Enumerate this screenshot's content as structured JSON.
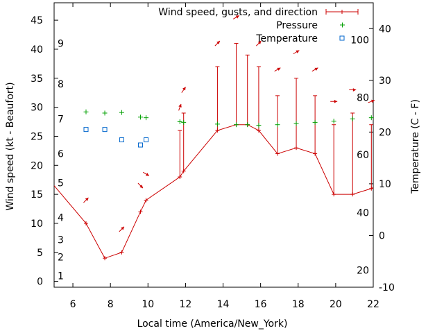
{
  "chart_data": {
    "type": "line",
    "xlabel": "Local time (America/New_York)",
    "ylabel_left": "Wind speed (kt - Beaufort)",
    "ylabel_right": "Temperature (C - F)",
    "xlim": [
      5,
      22
    ],
    "ylim_left": [
      -1,
      48
    ],
    "ylim_right": [
      -10,
      45
    ],
    "x_ticks": [
      6,
      8,
      10,
      12,
      14,
      16,
      18,
      20,
      22
    ],
    "y_left_ticks": [
      0,
      5,
      10,
      15,
      20,
      25,
      30,
      35,
      40,
      45
    ],
    "y_right_ticks": [
      -10,
      0,
      10,
      20,
      30,
      40
    ],
    "beaufort_labels": [
      {
        "label": "1",
        "knots": 1
      },
      {
        "label": "2",
        "knots": 4.2
      },
      {
        "label": "3",
        "knots": 7.2
      },
      {
        "label": "4",
        "knots": 11
      },
      {
        "label": "5",
        "knots": 17
      },
      {
        "label": "6",
        "knots": 22
      },
      {
        "label": "7",
        "knots": 28
      },
      {
        "label": "8",
        "knots": 34
      },
      {
        "label": "9",
        "knots": 41
      }
    ],
    "fahrenheit_labels": [
      {
        "label": "20",
        "celsius": -6.7
      },
      {
        "label": "40",
        "celsius": 4.4
      },
      {
        "label": "60",
        "celsius": 15.6
      },
      {
        "label": "80",
        "celsius": 26.7
      },
      {
        "label": "100",
        "celsius": 37.8
      }
    ],
    "legend": {
      "position": "top-right",
      "entries": [
        {
          "key": "wind",
          "label": "Wind speed, gusts, and direction",
          "color": "#cc0000",
          "symbol": "errorbar-line"
        },
        {
          "key": "pressure",
          "label": "Pressure",
          "color": "#00a000",
          "symbol": "plus"
        },
        {
          "key": "temperature",
          "label": "Temperature",
          "color": "#0066cc",
          "symbol": "open-square"
        }
      ]
    },
    "series": [
      {
        "name": "Wind speed, gusts, and direction",
        "color": "#cc0000",
        "x": [
          5.0,
          6.7,
          7.7,
          8.6,
          9.6,
          9.9,
          11.7,
          11.9,
          13.7,
          14.7,
          15.3,
          15.9,
          16.9,
          17.9,
          18.9,
          19.9,
          20.9,
          21.9,
          22.0
        ],
        "y": [
          16.5,
          10,
          4,
          5,
          12,
          14,
          18,
          19,
          26,
          27,
          27,
          26,
          22,
          23,
          22,
          15,
          15,
          16,
          16.2
        ],
        "gusts": [
          null,
          null,
          null,
          null,
          null,
          null,
          26,
          29,
          37,
          41,
          39,
          37,
          32,
          35,
          32,
          27,
          29,
          27,
          null
        ]
      }
    ],
    "wind_arrows": [
      {
        "x": 6.7,
        "knots": 14,
        "direction_deg": 225
      },
      {
        "x": 8.6,
        "knots": 9,
        "direction_deg": 225
      },
      {
        "x": 9.6,
        "knots": 16.5,
        "direction_deg": 315
      },
      {
        "x": 9.9,
        "knots": 18.5,
        "direction_deg": 300
      },
      {
        "x": 11.7,
        "knots": 30,
        "direction_deg": 200
      },
      {
        "x": 11.9,
        "knots": 33,
        "direction_deg": 215
      },
      {
        "x": 13.7,
        "knots": 41,
        "direction_deg": 225
      },
      {
        "x": 14.7,
        "knots": 45.5,
        "direction_deg": 240
      },
      {
        "x": 15.9,
        "knots": 41,
        "direction_deg": 225
      },
      {
        "x": 16.9,
        "knots": 36.5,
        "direction_deg": 240
      },
      {
        "x": 17.9,
        "knots": 39.5,
        "direction_deg": 240
      },
      {
        "x": 18.9,
        "knots": 36.5,
        "direction_deg": 240
      },
      {
        "x": 19.9,
        "knots": 31,
        "direction_deg": 270
      },
      {
        "x": 20.9,
        "knots": 33,
        "direction_deg": 270
      },
      {
        "x": 21.9,
        "knots": 31,
        "direction_deg": 250
      }
    ],
    "pressure_points": {
      "x": [
        6.7,
        7.7,
        8.6,
        9.6,
        9.9,
        11.7,
        11.9,
        13.7,
        14.7,
        15.3,
        15.9,
        16.9,
        17.9,
        18.9,
        19.9,
        20.9,
        21.9
      ],
      "y": [
        29.2,
        29.0,
        29.1,
        28.3,
        28.2,
        27.5,
        27.4,
        27.1,
        27.0,
        27.0,
        26.9,
        27.0,
        27.2,
        27.4,
        27.6,
        28.0,
        28.2
      ]
    },
    "temperature_points": {
      "x": [
        6.7,
        7.7,
        8.6,
        9.6,
        9.9
      ],
      "celsius": [
        20.5,
        20.5,
        18.5,
        17.5,
        18.5
      ]
    }
  }
}
